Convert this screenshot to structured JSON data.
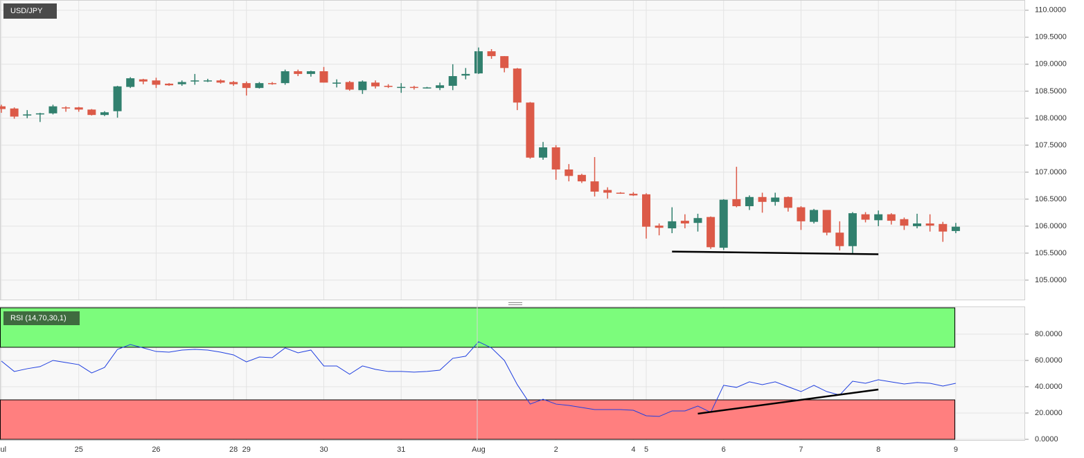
{
  "chart_data": [
    {
      "type": "candlestick",
      "title": "USD/JPY",
      "open": [
        108.22,
        108.18,
        108.05,
        108.07,
        108.09,
        108.2,
        108.2,
        108.16,
        108.06,
        108.13,
        108.58,
        108.72,
        108.7,
        108.64,
        108.63,
        108.68,
        108.69,
        108.7,
        108.67,
        108.65,
        108.56,
        108.65,
        108.65,
        108.87,
        108.82,
        108.87,
        108.64,
        108.67,
        108.52,
        108.66,
        108.6,
        108.57,
        108.58,
        108.56,
        108.56,
        108.6,
        108.79,
        108.83,
        109.24,
        109.15,
        108.92,
        108.29,
        107.27,
        107.46,
        107.05,
        106.95,
        106.83,
        106.67,
        106.62,
        106.6,
        106.59,
        106.01,
        105.96,
        106.1,
        106.06,
        106.17,
        105.6,
        106.5,
        106.37,
        106.54,
        106.45,
        106.54,
        106.35,
        106.08,
        106.3,
        105.88,
        105.63,
        106.22,
        106.11,
        106.22,
        106.13,
        106.0,
        106.05,
        106.04,
        105.91
      ],
      "high": [
        108.25,
        108.2,
        108.15,
        108.1,
        108.25,
        108.22,
        108.21,
        108.17,
        108.13,
        108.6,
        108.76,
        108.73,
        108.75,
        108.65,
        108.7,
        108.82,
        108.73,
        108.72,
        108.69,
        108.68,
        108.67,
        108.67,
        108.9,
        108.9,
        108.88,
        108.95,
        108.72,
        108.69,
        108.7,
        108.7,
        108.63,
        108.65,
        108.6,
        108.58,
        108.66,
        109.0,
        108.93,
        109.31,
        109.28,
        109.15,
        108.93,
        108.3,
        107.56,
        107.5,
        107.15,
        106.97,
        107.28,
        106.72,
        106.63,
        106.63,
        106.61,
        106.05,
        106.35,
        106.22,
        106.23,
        106.18,
        106.5,
        107.1,
        106.57,
        106.62,
        106.62,
        106.55,
        106.37,
        106.32,
        106.3,
        106.09,
        106.26,
        106.26,
        106.29,
        106.24,
        106.16,
        106.23,
        106.22,
        106.08,
        106.06
      ],
      "low": [
        108.1,
        107.99,
        108.0,
        107.93,
        108.07,
        108.12,
        108.12,
        108.05,
        108.04,
        108.01,
        108.56,
        108.63,
        108.56,
        108.6,
        108.6,
        108.62,
        108.67,
        108.64,
        108.6,
        108.42,
        108.55,
        108.62,
        108.62,
        108.78,
        108.77,
        108.66,
        108.57,
        108.51,
        108.45,
        108.55,
        108.56,
        108.47,
        108.53,
        108.55,
        108.52,
        108.52,
        108.72,
        108.82,
        109.1,
        108.85,
        108.15,
        107.25,
        107.23,
        106.86,
        106.83,
        106.8,
        106.55,
        106.51,
        106.6,
        106.56,
        105.77,
        105.83,
        105.87,
        105.96,
        105.9,
        105.58,
        105.56,
        106.35,
        106.3,
        106.25,
        106.38,
        106.27,
        105.93,
        106.05,
        105.83,
        105.55,
        105.5,
        106.07,
        106.0,
        106.03,
        105.93,
        105.96,
        105.9,
        105.71,
        105.87
      ],
      "close": [
        108.17,
        108.03,
        108.07,
        108.09,
        108.22,
        108.19,
        108.16,
        108.06,
        108.11,
        108.59,
        108.74,
        108.68,
        108.62,
        108.61,
        108.67,
        108.7,
        108.7,
        108.66,
        108.63,
        108.56,
        108.65,
        108.64,
        108.87,
        108.82,
        108.87,
        108.66,
        108.66,
        108.53,
        108.68,
        108.59,
        108.58,
        108.58,
        108.57,
        108.57,
        108.61,
        108.78,
        108.82,
        109.24,
        109.15,
        108.93,
        108.29,
        107.27,
        107.46,
        107.05,
        106.93,
        106.83,
        106.64,
        106.62,
        106.61,
        106.57,
        105.99,
        105.97,
        106.09,
        106.05,
        106.15,
        105.61,
        106.49,
        106.37,
        106.54,
        106.45,
        106.53,
        106.34,
        106.09,
        106.3,
        105.88,
        105.63,
        106.24,
        106.12,
        106.22,
        106.1,
        106.01,
        106.05,
        106.01,
        105.9,
        105.99
      ],
      "up_color": "#31806e",
      "down_color": "#dc5a48",
      "ylim": [
        104.64,
        110.19
      ],
      "yticks": [
        {
          "value": 105,
          "label": "105.0000"
        },
        {
          "value": 105.5,
          "label": "105.5000"
        },
        {
          "value": 106,
          "label": "106.0000"
        },
        {
          "value": 106.5,
          "label": "106.5000"
        },
        {
          "value": 107,
          "label": "107.0000"
        },
        {
          "value": 107.5,
          "label": "107.5000"
        },
        {
          "value": 108,
          "label": "108.0000"
        },
        {
          "value": 108.5,
          "label": "108.5000"
        },
        {
          "value": 109,
          "label": "109.0000"
        },
        {
          "value": 109.5,
          "label": "109.5000"
        },
        {
          "value": 110,
          "label": "110.0000"
        }
      ],
      "trendline": {
        "x": [
          52,
          68
        ],
        "values": [
          105.53,
          105.48
        ],
        "color": "#000000"
      },
      "grid": true
    },
    {
      "type": "line",
      "title": "RSI (14,70,30,1)",
      "categories": [
        "Jul",
        null,
        null,
        null,
        null,
        null,
        "25",
        null,
        null,
        null,
        null,
        null,
        "26",
        null,
        null,
        null,
        null,
        null,
        "28",
        "29",
        null,
        null,
        null,
        null,
        null,
        "30",
        null,
        null,
        null,
        null,
        null,
        "31",
        null,
        null,
        null,
        null,
        null,
        "Aug",
        null,
        null,
        null,
        null,
        null,
        "2",
        null,
        null,
        null,
        null,
        null,
        "4",
        "5",
        null,
        null,
        null,
        null,
        null,
        "6",
        null,
        null,
        null,
        null,
        null,
        "7",
        null,
        null,
        null,
        null,
        null,
        "8",
        null,
        null,
        null,
        null,
        null,
        "9"
      ],
      "values": [
        59.5,
        51.6,
        53.7,
        55.3,
        60,
        58.4,
        56.8,
        50.5,
        54.7,
        68.4,
        72.1,
        69.5,
        66.8,
        66.3,
        67.9,
        68.4,
        67.9,
        66.3,
        64.2,
        58.9,
        62.6,
        62.1,
        69.5,
        65.8,
        67.9,
        55.8,
        55.8,
        49.5,
        55.8,
        53.2,
        51.6,
        51.6,
        51.1,
        51.6,
        52.6,
        61.6,
        63.2,
        74.2,
        69.5,
        60,
        41.6,
        26.8,
        30.5,
        26.8,
        25.8,
        24.2,
        22.6,
        22.6,
        22.6,
        22.1,
        17.9,
        17.4,
        21.6,
        21.6,
        25.3,
        20.5,
        41.1,
        39.5,
        43.7,
        41.6,
        43.7,
        40,
        36.3,
        41.1,
        36.3,
        33.7,
        44.2,
        42.6,
        45.3,
        43.7,
        42.1,
        43.2,
        42.6,
        40.5,
        42.6
      ],
      "color": "#1f3fe0",
      "zones": [
        {
          "from": 70,
          "to": 100,
          "color": "#7cfc7c"
        },
        {
          "from": 0,
          "to": 30,
          "color": "#ff7f7f"
        }
      ],
      "ylim": [
        0,
        100.5
      ],
      "yticks": [
        {
          "value": 0,
          "label": "0.0000"
        },
        {
          "value": 20,
          "label": "20.0000"
        },
        {
          "value": 40,
          "label": "40.0000"
        },
        {
          "value": 60,
          "label": "60.0000"
        },
        {
          "value": 80,
          "label": "80.0000"
        }
      ],
      "trendline": {
        "x": [
          54,
          68
        ],
        "values": [
          19.5,
          37.9
        ],
        "color": "#000000"
      },
      "grid": true
    }
  ]
}
